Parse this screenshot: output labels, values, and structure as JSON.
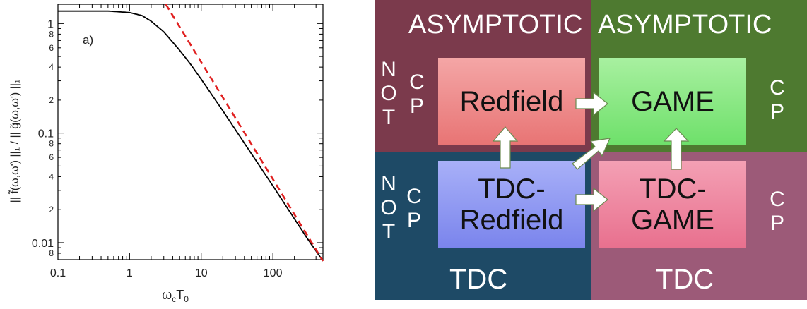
{
  "chart_data": {
    "type": "line",
    "panel_label": "a)",
    "xlabel_main": "ω",
    "xlabel_sub1": "c",
    "xlabel_mid": "T",
    "xlabel_sub2": "0",
    "ylabel": "|| f̃(ω,ω') ||₁ / || g̃(ω,ω') ||₁",
    "xscale": "log",
    "yscale": "log",
    "xlim": [
      0.1,
      500
    ],
    "ylim": [
      0.007,
      1.5
    ],
    "x_ticks": [
      {
        "value": 0.1,
        "label": "0.1"
      },
      {
        "value": 1,
        "label": "1"
      },
      {
        "value": 10,
        "label": "10"
      },
      {
        "value": 100,
        "label": "100"
      }
    ],
    "y_ticks": [
      {
        "value": 0.01,
        "label": "0.01"
      },
      {
        "value": 0.02,
        "label": "2"
      },
      {
        "value": 0.04,
        "label": "4"
      },
      {
        "value": 0.06,
        "label": "6"
      },
      {
        "value": 0.08,
        "label": "8"
      },
      {
        "value": 0.1,
        "label": "0.1"
      },
      {
        "value": 0.2,
        "label": "2"
      },
      {
        "value": 0.4,
        "label": "4"
      },
      {
        "value": 0.6,
        "label": "6"
      },
      {
        "value": 0.8,
        "label": "8"
      },
      {
        "value": 1,
        "label": "1"
      },
      {
        "value": 0.008,
        "label": "8"
      }
    ],
    "series": [
      {
        "color": "#000000",
        "style": "solid",
        "points": [
          [
            0.1,
            1.3
          ],
          [
            0.5,
            1.3
          ],
          [
            1,
            1.26
          ],
          [
            1.5,
            1.18
          ],
          [
            2,
            1.05
          ],
          [
            3,
            0.84
          ],
          [
            5,
            0.57
          ],
          [
            7,
            0.43
          ],
          [
            10,
            0.31
          ],
          [
            20,
            0.16
          ],
          [
            50,
            0.065
          ],
          [
            100,
            0.033
          ],
          [
            200,
            0.0165
          ],
          [
            300,
            0.011
          ],
          [
            500,
            0.0068
          ]
        ]
      },
      {
        "color": "#e02020",
        "style": "dashed",
        "points": [
          [
            3.2,
            1.5
          ],
          [
            500,
            0.0068
          ]
        ]
      }
    ]
  },
  "diagram": {
    "quadrants": {
      "top_left": {
        "color": "#7b3a4c",
        "label": "ASYMPTOTIC",
        "side_letters": [
          "N",
          "O",
          "T"
        ],
        "side_letters2": [
          "C",
          "P"
        ]
      },
      "top_right": {
        "color": "#4e7a30",
        "label": "ASYMPTOTIC",
        "side_letters": [
          "C",
          "P"
        ]
      },
      "bottom_left": {
        "color": "#1e4a66",
        "label": "TDC",
        "side_letters": [
          "N",
          "O",
          "T"
        ],
        "side_letters2": [
          "C",
          "P"
        ]
      },
      "bottom_right": {
        "color": "#9c5a78",
        "label": "TDC",
        "side_letters": [
          "C",
          "P"
        ]
      }
    },
    "boxes": {
      "redfield": {
        "label": "Redfield",
        "color_top": "#f4a6a6",
        "color_bottom": "#e87474"
      },
      "game": {
        "label": "GAME",
        "color_top": "#a8f0a0",
        "color_bottom": "#6ee06a"
      },
      "tdc_redfield": {
        "label": "TDC-\nRedfield",
        "color_top": "#a8b0f8",
        "color_bottom": "#7a84ec"
      },
      "tdc_game": {
        "label": "TDC-\nGAME",
        "color_top": "#f4a0b4",
        "color_bottom": "#e8708e"
      }
    }
  }
}
